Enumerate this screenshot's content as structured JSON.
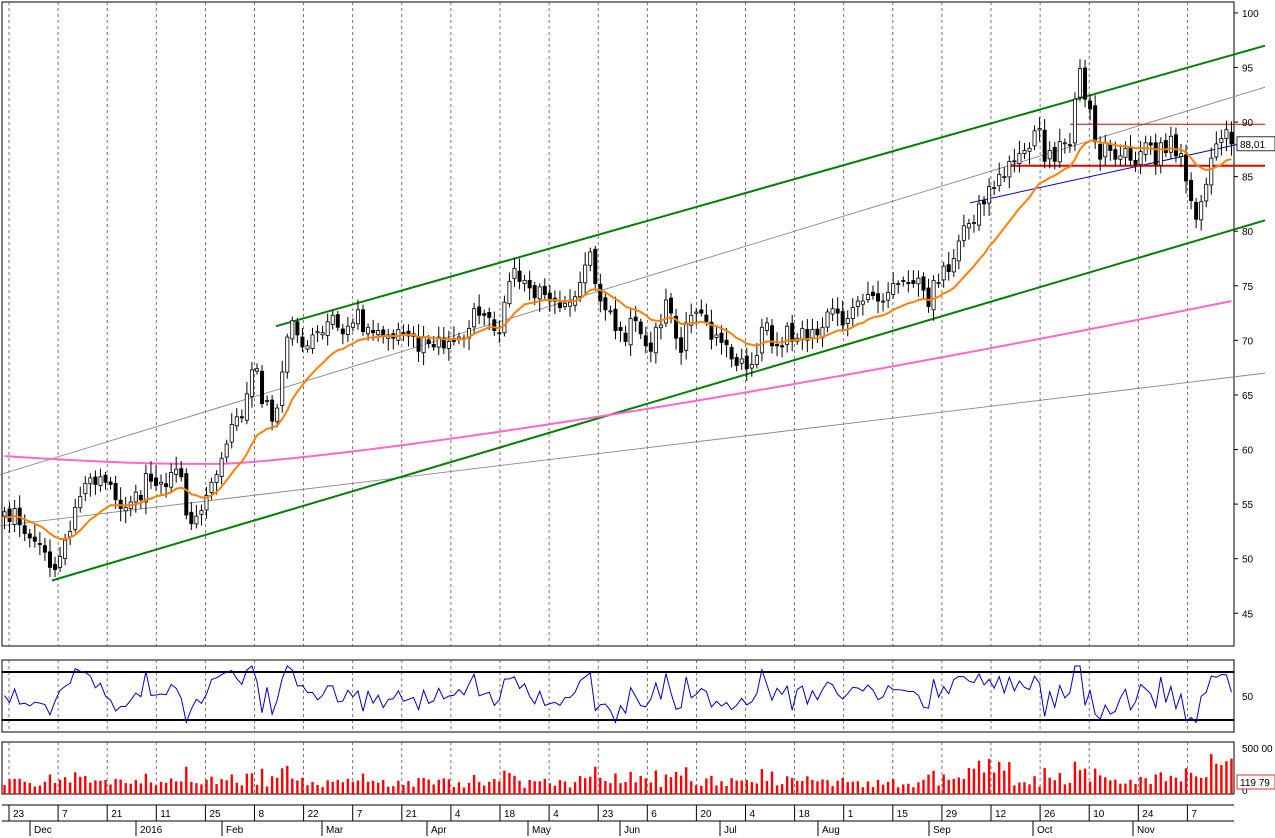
{
  "chart_data": {
    "type": "candlestick",
    "price": {
      "ylim": [
        42,
        101
      ],
      "yticks": [
        45,
        50,
        55,
        60,
        65,
        70,
        75,
        80,
        85,
        90,
        95,
        100
      ],
      "last_value_label": "88,01",
      "last_value": 88.01,
      "colors": {
        "up": "#ffffff",
        "down": "#000000",
        "ema_fast": "#ff8000",
        "ma_slow": "#ff66cc"
      },
      "closes": [
        54.3,
        53.4,
        54.6,
        53.1,
        52.3,
        51.9,
        51.6,
        51.3,
        50.6,
        49.2,
        49.0,
        50.2,
        51.7,
        52.5,
        54.7,
        55.7,
        56.9,
        57.4,
        56.8,
        57.5,
        57.0,
        56.8,
        55.4,
        54.6,
        54.7,
        55.2,
        56.1,
        55.4,
        57.8,
        57.1,
        56.7,
        57.0,
        56.6,
        57.9,
        58.2,
        57.5,
        54.0,
        53.2,
        53.9,
        54.4,
        55.8,
        57.0,
        57.7,
        59.2,
        60.5,
        62.3,
        63.0,
        62.9,
        65.1,
        67.3,
        67.4,
        64.2,
        64.5,
        62.6,
        63.8,
        67.1,
        70.3,
        71.8,
        70.5,
        69.4,
        69.5,
        70.5,
        70.8,
        70.7,
        71.7,
        72.3,
        71.2,
        70.6,
        71.3,
        71.6,
        72.8,
        70.8,
        71.2,
        70.7,
        70.9,
        70.4,
        70.5,
        70.2,
        71.0,
        70.7,
        70.4,
        70.6,
        69.0,
        70.3,
        69.7,
        69.4,
        70.3,
        69.3,
        69.9,
        69.9,
        70.3,
        70.2,
        71.1,
        72.9,
        72.3,
        72.3,
        72.1,
        70.9,
        70.7,
        73.5,
        75.4,
        76.6,
        75.4,
        75.5,
        74.8,
        73.9,
        74.9,
        74.2,
        73.6,
        73.6,
        73.0,
        73.4,
        73.5,
        74.0,
        75.3,
        76.9,
        78.1,
        75.2,
        73.6,
        72.8,
        72.7,
        70.9,
        70.9,
        69.9,
        72.0,
        71.8,
        70.6,
        69.5,
        69.0,
        71.2,
        71.4,
        73.7,
        72.5,
        70.2,
        68.9,
        71.6,
        72.3,
        72.6,
        72.5,
        71.7,
        70.1,
        70.5,
        69.8,
        69.6,
        68.3,
        67.7,
        68.3,
        67.4,
        67.8,
        68.6,
        71.2,
        71.6,
        69.5,
        69.5,
        69.4,
        71.3,
        69.9,
        70.2,
        71.1,
        70.0,
        71.0,
        70.5,
        71.2,
        72.6,
        72.9,
        72.5,
        71.4,
        72.0,
        73.0,
        73.6,
        73.6,
        74.2,
        74.1,
        73.6,
        73.6,
        74.4,
        75.2,
        75.2,
        75.4,
        75.2,
        75.2,
        75.7,
        74.6,
        73.1,
        75.5,
        75.3,
        76.8,
        76.3,
        77.5,
        79.1,
        80.5,
        80.7,
        80.8,
        82.5,
        82.5,
        84.1,
        84.0,
        85.2,
        85.0,
        86.4,
        86.4,
        87.1,
        87.4,
        87.6,
        89.2,
        89.4,
        86.4,
        87.4,
        86.4,
        88.2,
        88.1,
        87.9,
        92.1,
        94.9,
        92.1,
        91.2,
        88.2,
        86.6,
        88.1,
        87.4,
        86.6,
        86.9,
        87.6,
        86.5,
        86.1,
        87.3,
        88.1,
        87.9,
        86.1,
        88.1,
        87.2,
        88.7,
        86.9,
        87.1,
        84.6,
        82.8,
        81.1,
        82.7,
        84.3,
        86.7,
        88.0,
        88.5,
        89.3,
        88.0
      ],
      "ema_fast": [
        53.8,
        53.8,
        53.9,
        53.8,
        53.6,
        53.4,
        53.2,
        53.0,
        52.7,
        52.3,
        52.0,
        51.8,
        51.8,
        51.9,
        52.2,
        52.6,
        53.1,
        53.6,
        53.9,
        54.3,
        54.6,
        54.9,
        54.9,
        54.9,
        54.9,
        54.9,
        55.0,
        55.1,
        55.4,
        55.5,
        55.7,
        55.8,
        55.9,
        56.1,
        56.4,
        56.5,
        56.3,
        55.9,
        55.8,
        55.6,
        55.6,
        55.8,
        56.1,
        56.6,
        57.2,
        57.8,
        58.4,
        58.9,
        59.6,
        60.5,
        61.3,
        61.6,
        61.9,
        62.0,
        62.2,
        62.8,
        63.6,
        64.6,
        65.3,
        65.9,
        66.5,
        67.0,
        67.5,
        67.9,
        68.4,
        68.8,
        69.1,
        69.2,
        69.5,
        69.7,
        70.0,
        70.1,
        70.2,
        70.3,
        70.3,
        70.4,
        70.4,
        70.4,
        70.4,
        70.5,
        70.5,
        70.5,
        70.3,
        70.3,
        70.3,
        70.2,
        70.2,
        70.1,
        70.1,
        70.1,
        70.1,
        70.1,
        70.3,
        70.6,
        70.8,
        71.0,
        71.2,
        71.2,
        71.1,
        71.4,
        71.9,
        72.5,
        72.9,
        73.3,
        73.4,
        73.5,
        73.6,
        73.7,
        73.7,
        73.7,
        73.6,
        73.6,
        73.6,
        73.6,
        73.8,
        74.2,
        74.6,
        74.7,
        74.6,
        74.4,
        74.1,
        73.8,
        73.5,
        73.1,
        72.9,
        72.8,
        72.6,
        72.3,
        71.9,
        71.8,
        71.8,
        72.0,
        72.1,
        71.9,
        71.5,
        71.5,
        71.6,
        71.6,
        71.7,
        71.6,
        71.4,
        71.3,
        71.1,
        70.9,
        70.6,
        70.2,
        70.0,
        69.7,
        69.6,
        69.5,
        69.7,
        69.9,
        69.9,
        69.8,
        69.8,
        70.0,
        70.0,
        70.0,
        70.1,
        70.1,
        70.2,
        70.2,
        70.3,
        70.5,
        70.7,
        70.9,
        70.9,
        71.0,
        71.2,
        71.5,
        71.6,
        71.9,
        72.1,
        72.2,
        72.3,
        72.5,
        72.8,
        73.0,
        73.2,
        73.4,
        73.5,
        73.7,
        73.8,
        73.7,
        73.8,
        74.0,
        74.3,
        74.5,
        74.8,
        75.3,
        75.8,
        76.3,
        76.8,
        77.4,
        77.9,
        78.6,
        79.1,
        79.7,
        80.3,
        80.9,
        81.5,
        82.1,
        82.6,
        83.1,
        83.8,
        84.4,
        84.6,
        84.9,
        85.1,
        85.4,
        85.7,
        85.9,
        86.6,
        87.5,
        88.0,
        88.3,
        88.3,
        88.1,
        88.1,
        88.0,
        87.9,
        87.8,
        87.8,
        87.7,
        87.6,
        87.6,
        87.6,
        87.6,
        87.5,
        87.5,
        87.5,
        87.6,
        87.5,
        87.5,
        87.2,
        86.7,
        86.1,
        85.8,
        85.6,
        85.7,
        85.9,
        86.1,
        86.5,
        86.6
      ],
      "ma_slow_start": 59.4,
      "ma_slow_end": 73.6,
      "ma_slow_legend": ""
    },
    "oscillator": {
      "levels": [
        30,
        50,
        70
      ],
      "ylim": [
        20,
        80
      ],
      "tick_label": "50",
      "color": "#0000c0"
    },
    "volume": {
      "tick_top": "500 00",
      "tick_bottom": "0",
      "last_label": "119 79",
      "color": "#ff0000"
    },
    "x_axis": {
      "days": [
        "23",
        "7",
        "21",
        "11",
        "25",
        "8",
        "22",
        "7",
        "21",
        "4",
        "18",
        "4",
        "23",
        "6",
        "20",
        "4",
        "18",
        "1",
        "15",
        "29",
        "12",
        "26",
        "10",
        "24",
        "7"
      ],
      "months": [
        "Dec",
        "2016",
        "Feb",
        "Mar",
        "Apr",
        "May",
        "Jun",
        "Jul",
        "Aug",
        "Sep",
        "Oct",
        "Nov"
      ]
    }
  }
}
